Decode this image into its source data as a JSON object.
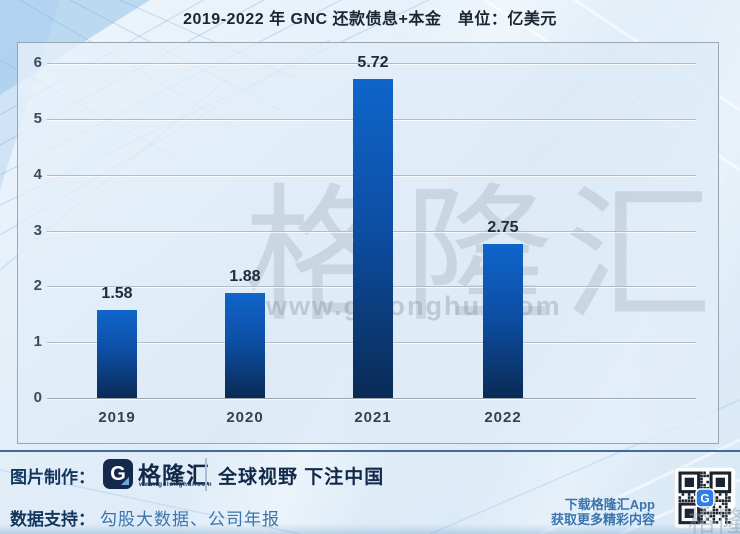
{
  "page": {
    "title": "2019-2022 年 GNC 还款债息+本金　单位：亿美元"
  },
  "chart_data": {
    "type": "bar",
    "title": "2019-2022 年 GNC 还款债息+本金",
    "unit": "单位：亿美元",
    "categories": [
      "2019",
      "2020",
      "2021",
      "2022"
    ],
    "values": [
      1.58,
      1.88,
      5.72,
      2.75
    ],
    "ylim": [
      0,
      6
    ],
    "yticks": [
      0,
      1,
      2,
      3,
      4,
      5,
      6
    ],
    "grid": "horizontal",
    "legend": "none",
    "bar_color_top": "#0f65ca",
    "bar_color_bottom": "#0a2b55"
  },
  "watermark": {
    "brand_text": "格隆汇",
    "url_text": "www.gelonghui.com",
    "corner_text": "格隆汇"
  },
  "footer": {
    "made_by_label": "图片制作：",
    "brand_logo_letter": "G",
    "brand_name": "格隆汇",
    "brand_url": "www.gelonghui.com",
    "slogan": "全球视野 下注中国",
    "data_support_label": "数据支持：",
    "data_support_value": "勾股大数据、公司年报",
    "app_promo_line1": "下载格隆汇App",
    "app_promo_line2": "获取更多精彩内容",
    "qr_center_letter": "G"
  },
  "colors": {
    "separator": "#3f6b9e",
    "accent_navy": "#12294a",
    "link_blue": "#3b74ae",
    "axis_text": "#3d4c5c"
  }
}
